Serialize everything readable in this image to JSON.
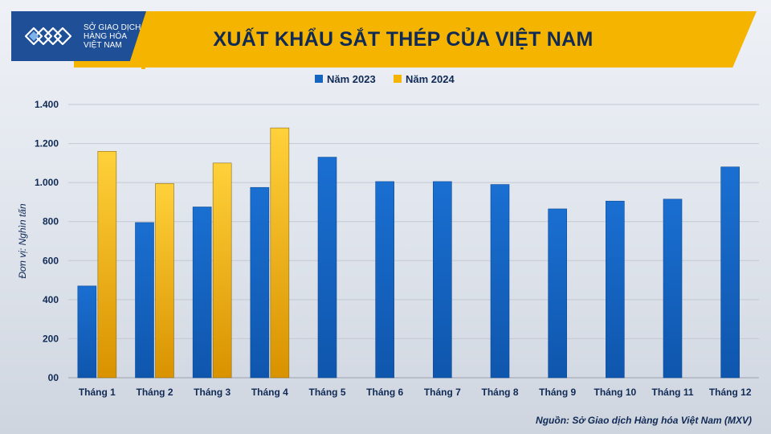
{
  "header": {
    "title": "XUẤT KHẨU SẮT THÉP CỦA VIỆT NAM",
    "logo_lines": [
      "SỞ GIAO DỊCH",
      "HÀNG HÓA",
      "VIỆT NAM"
    ],
    "source": "Nguồn: Sở Giao dịch Hàng hóa Việt Nam (MXV)"
  },
  "colors": {
    "series_2023": "#1565c0",
    "series_2024": "#f4b400",
    "header": "#f4b400",
    "title_text": "#102a55"
  },
  "chart_data": {
    "type": "bar",
    "title": "XUẤT KHẨU SẮT THÉP CỦA VIỆT NAM",
    "xlabel": "",
    "ylabel": "Đơn vị: Nghìn tấn",
    "ylim": [
      0,
      1400
    ],
    "yticks": [
      0,
      200,
      400,
      600,
      800,
      1000,
      1200,
      1400
    ],
    "ytick_labels": [
      "00",
      "200",
      "400",
      "600",
      "800",
      "1.000",
      "1.200",
      "1.400"
    ],
    "grid": true,
    "legend_position": "top-center",
    "categories": [
      "Tháng 1",
      "Tháng 2",
      "Tháng 3",
      "Tháng 4",
      "Tháng 5",
      "Tháng 6",
      "Tháng 7",
      "Tháng 8",
      "Tháng 9",
      "Tháng 10",
      "Tháng 11",
      "Tháng 12"
    ],
    "series": [
      {
        "name": "Năm 2023",
        "values": [
          470,
          795,
          875,
          975,
          1130,
          1005,
          1005,
          990,
          865,
          905,
          915,
          1080
        ]
      },
      {
        "name": "Năm 2024",
        "values": [
          1160,
          995,
          1100,
          1280,
          null,
          null,
          null,
          null,
          null,
          null,
          null,
          null
        ]
      }
    ]
  }
}
